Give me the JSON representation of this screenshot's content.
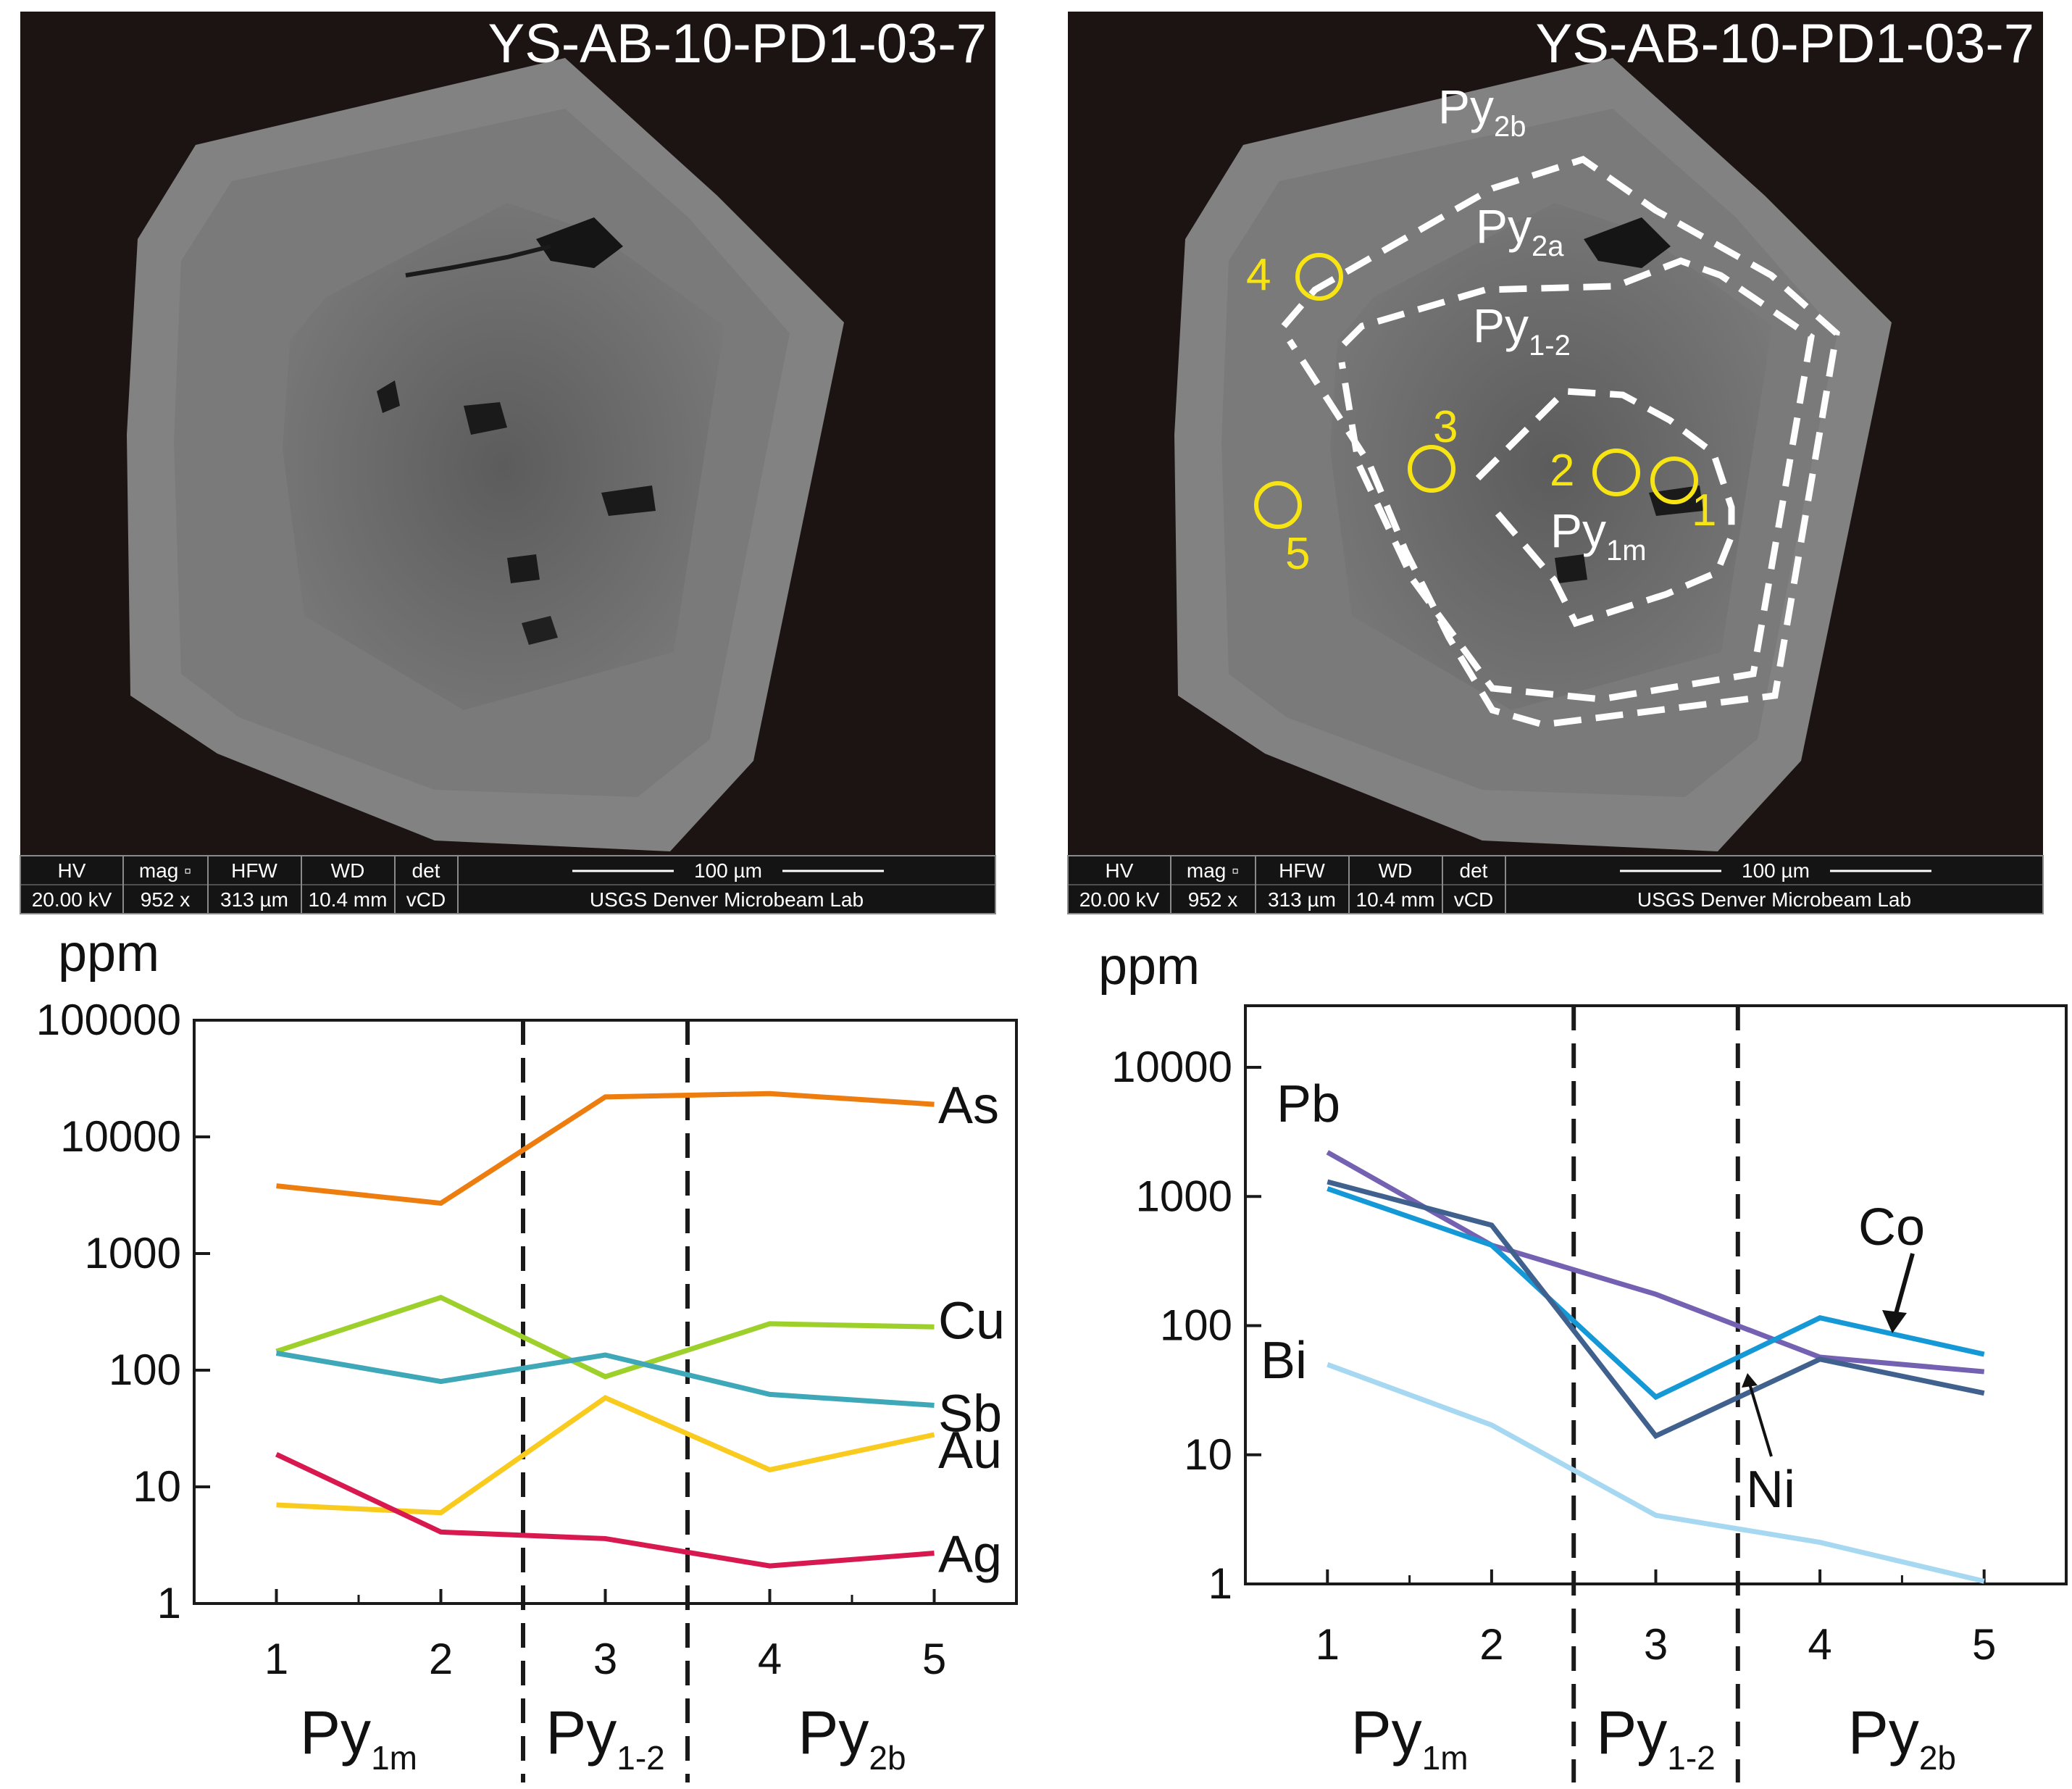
{
  "sem": {
    "sample_id": "YS-AB-10-PD1-03-7",
    "info_bar": {
      "hv_label": "HV",
      "hv_value": "20.00 kV",
      "mag_label": "mag ▫",
      "mag_value": "952 x",
      "hfw_label": "HFW",
      "hfw_value": "313 µm",
      "wd_label": "WD",
      "wd_value": "10.4 mm",
      "det_label": "det",
      "det_value": "vCD",
      "scale_label": "100 µm",
      "lab": "USGS Denver Microbeam Lab"
    },
    "zones": [
      {
        "main": "Py",
        "sub": "2b"
      },
      {
        "main": "Py",
        "sub": "2a"
      },
      {
        "main": "Py",
        "sub": "1-2"
      },
      {
        "main": "Py",
        "sub": "1m"
      }
    ],
    "spots": [
      "1",
      "2",
      "3",
      "4",
      "5"
    ],
    "colors": {
      "spot": "#f7e414",
      "zone_line": "#ffffff",
      "background": "#1c1413"
    }
  },
  "chart_data": [
    {
      "type": "line",
      "yscale": "log",
      "unit": "ppm",
      "x": [
        1,
        2,
        3,
        4,
        5
      ],
      "x_tick_labels": [
        "1",
        "2",
        "3",
        "4",
        "5"
      ],
      "y_tick_labels": [
        "1",
        "10",
        "100",
        "1000",
        "10000",
        "100000"
      ],
      "ylim": [
        1,
        100000
      ],
      "xlim": [
        0.5,
        5.5
      ],
      "boundaries": [
        2.5,
        3.5
      ],
      "groups": [
        {
          "main": "Py",
          "sub": "1m",
          "center": 1.5
        },
        {
          "main": "Py",
          "sub": "1-2",
          "center": 3.0
        },
        {
          "main": "Py",
          "sub": "2b",
          "center": 4.5
        }
      ],
      "series": [
        {
          "name": "As",
          "color": "#ee7d10",
          "values": [
            3800,
            2700,
            22000,
            23500,
            19000
          ]
        },
        {
          "name": "Cu",
          "color": "#9ed02c",
          "values": [
            145,
            420,
            88,
            250,
            235
          ]
        },
        {
          "name": "Sb",
          "color": "#3fa8b8",
          "values": [
            140,
            80,
            135,
            62,
            50
          ]
        },
        {
          "name": "Au",
          "color": "#f8cb1e",
          "values": [
            7,
            6,
            58,
            14,
            28
          ]
        },
        {
          "name": "Ag",
          "color": "#d7194f",
          "values": [
            19,
            4.1,
            3.6,
            2.1,
            2.7
          ]
        }
      ]
    },
    {
      "type": "line",
      "yscale": "log",
      "unit": "ppm",
      "x": [
        1,
        2,
        3,
        4,
        5
      ],
      "x_tick_labels": [
        "1",
        "2",
        "3",
        "4",
        "5"
      ],
      "y_tick_labels": [
        "1",
        "10",
        "100",
        "1000",
        "10000"
      ],
      "ylim": [
        1,
        30000
      ],
      "xlim": [
        0.5,
        5.5
      ],
      "boundaries": [
        2.5,
        3.5
      ],
      "groups": [
        {
          "main": "Py",
          "sub": "1m",
          "center": 1.5
        },
        {
          "main": "Py",
          "sub": "1-2",
          "center": 3.0
        },
        {
          "main": "Py",
          "sub": "2b",
          "center": 4.5
        }
      ],
      "series": [
        {
          "name": "Pb",
          "color": "#7461b2",
          "values": [
            2200,
            420,
            175,
            57,
            44
          ]
        },
        {
          "name": "Co",
          "color": "#1598d6",
          "values": [
            1150,
            420,
            28,
            115,
            60
          ]
        },
        {
          "name": "Ni",
          "color": "#40618e",
          "values": [
            1300,
            600,
            14,
            55,
            30
          ]
        },
        {
          "name": "Bi",
          "color": "#a7d8f2",
          "values": [
            50,
            17,
            3.4,
            2.1,
            1.05
          ]
        }
      ]
    }
  ]
}
